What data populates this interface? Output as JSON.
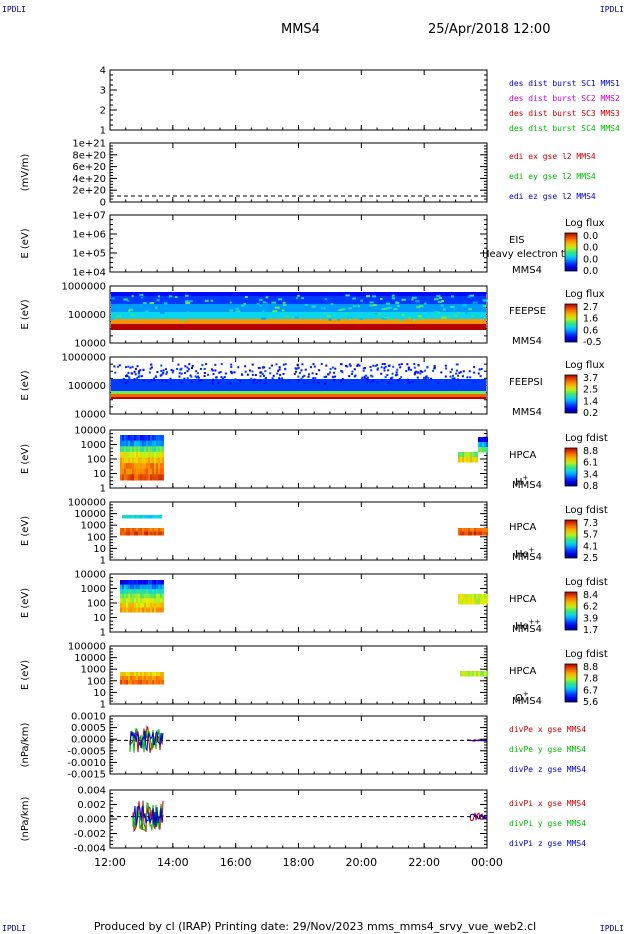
{
  "corners": {
    "tl": "IPDLI",
    "tr": "IPDLI",
    "bl": "IPDLI",
    "br": "IPDLI"
  },
  "header": {
    "spacecraft": "MMS4",
    "datetime": "25/Apr/2018 12:00"
  },
  "footer": {
    "text": "Produced by cl (IRAP)   Printing date: 29/Nov/2023   mms_mms4_srvy_vue_web2.cl"
  },
  "colors": {
    "red": "#cc0000",
    "green": "#00bb00",
    "blue": "#0000cc",
    "magenta": "#cc00cc"
  },
  "chart_data": {
    "type": "multi-panel time series",
    "x_ticks": [
      "12:00",
      "14:00",
      "16:00",
      "18:00",
      "20:00",
      "22:00",
      "00:00"
    ],
    "x_range": [
      "12:00",
      "00:00"
    ],
    "panels": [
      {
        "id": "burst",
        "ylabel": "",
        "ticks": [
          "4",
          "3",
          "2",
          "1"
        ],
        "ylim": [
          0.5,
          4.5
        ],
        "legend": [
          {
            "text": "des dist burst SC1 MMS1",
            "color": "#0000cc"
          },
          {
            "text": "des dist burst SC2 MMS2",
            "color": "#cc00cc"
          },
          {
            "text": "des dist burst SC3 MMS3",
            "color": "#cc0000"
          },
          {
            "text": "des dist burst SC4 MMS4",
            "color": "#00bb00"
          }
        ]
      },
      {
        "id": "edi",
        "ylabel": "(mV/m)",
        "ticks": [
          "1e+21",
          "8e+20",
          "6e+20",
          "4e+20",
          "2e+20",
          "0"
        ],
        "ylim": [
          -1e+20,
          1.1e+21
        ],
        "legend": [
          {
            "text": "edi ex gse l2 MMS4",
            "color": "#cc0000"
          },
          {
            "text": "edi ey gse l2 MMS4",
            "color": "#00bb00"
          },
          {
            "text": "edi ez gse l2 MMS4",
            "color": "#0000cc"
          }
        ]
      },
      {
        "id": "eis",
        "ylabel": "E (eV)",
        "ticks": [
          "1e+07",
          "1e+06",
          "1e+05",
          "1e+04"
        ],
        "inst": [
          "EIS",
          "MMS4"
        ],
        "overlay": "Heavy electron to",
        "cbar": {
          "title": "Log flux",
          "labels": [
            "0.0",
            "0.0",
            "0.0",
            "0.0"
          ]
        }
      },
      {
        "id": "feepse",
        "ylabel": "E (eV)",
        "ticks": [
          "1000000",
          "100000",
          "10000"
        ],
        "inst": [
          "FEEPSE",
          "MMS4"
        ],
        "cbar": {
          "title": "Log flux",
          "labels": [
            "2.7",
            "1.6",
            "0.6",
            "-0.5"
          ]
        }
      },
      {
        "id": "feepsi",
        "ylabel": "E (eV)",
        "ticks": [
          "1000000",
          "100000",
          "10000"
        ],
        "inst": [
          "FEEPSI",
          "MMS4"
        ],
        "cbar": {
          "title": "Log flux",
          "labels": [
            "3.7",
            "2.5",
            "1.4",
            "0.2"
          ]
        }
      },
      {
        "id": "hpca_h",
        "ylabel": "E (eV)",
        "ticks": [
          "10000",
          "1000",
          "100",
          "10",
          "1"
        ],
        "inst": [
          "HPCA",
          "MMS4"
        ],
        "species": "H",
        "sup": "+",
        "cbar": {
          "title": "Log fdist",
          "labels": [
            "8.8",
            "6.1",
            "3.4",
            "0.8"
          ]
        }
      },
      {
        "id": "hpca_he1",
        "ylabel": "E (eV)",
        "ticks": [
          "100000",
          "10000",
          "1000",
          "100",
          "10",
          "1"
        ],
        "inst": [
          "HPCA",
          "MMS4"
        ],
        "species": "He",
        "sup": "+",
        "cbar": {
          "title": "Log fdist",
          "labels": [
            "7.3",
            "5.7",
            "4.1",
            "2.5"
          ]
        }
      },
      {
        "id": "hpca_he2",
        "ylabel": "E (eV)",
        "ticks": [
          "10000",
          "1000",
          "100",
          "10",
          "1"
        ],
        "inst": [
          "HPCA",
          "MMS4"
        ],
        "species": "He",
        "sup": "++",
        "cbar": {
          "title": "Log fdist",
          "labels": [
            "8.4",
            "6.2",
            "3.9",
            "1.7"
          ]
        }
      },
      {
        "id": "hpca_o",
        "ylabel": "E (eV)",
        "ticks": [
          "100000",
          "10000",
          "1000",
          "100",
          "10",
          "1"
        ],
        "inst": [
          "HPCA",
          "MMS4"
        ],
        "species": "O",
        "sup": "+",
        "cbar": {
          "title": "Log fdist",
          "labels": [
            "8.8",
            "7.8",
            "6.7",
            "5.6"
          ]
        }
      },
      {
        "id": "divpe",
        "ylabel": "(nPa/km)",
        "ticks": [
          "0.0010",
          "0.0005",
          "0.0000",
          "-0.0005",
          "-0.0010",
          "-0.0015"
        ],
        "ylim": [
          -0.0017,
          0.0012
        ],
        "legend": [
          {
            "text": "divPe x gse MMS4",
            "color": "#cc0000"
          },
          {
            "text": "divPe y gse MMS4",
            "color": "#00bb00"
          },
          {
            "text": "divPe z gse MMS4",
            "color": "#0000cc"
          }
        ]
      },
      {
        "id": "divpi",
        "ylabel": "(nPa/km)",
        "ticks": [
          "0.004",
          "0.002",
          "0.000",
          "-0.002",
          "-0.004"
        ],
        "ylim": [
          -0.0045,
          0.0042
        ],
        "legend": [
          {
            "text": "divPi x gse MMS4",
            "color": "#cc0000"
          },
          {
            "text": "divPi y gse MMS4",
            "color": "#00bb00"
          },
          {
            "text": "divPi z gse MMS4",
            "color": "#0000cc"
          }
        ]
      }
    ]
  }
}
